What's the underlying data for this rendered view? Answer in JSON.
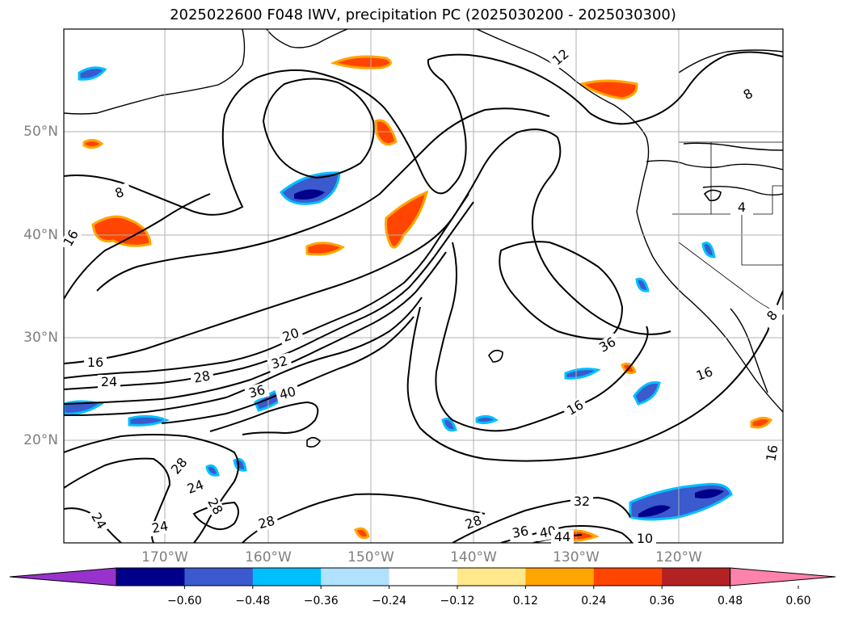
{
  "title": "2025022600 F048 IWV, precipitation PC (2025030200 - 2025030300)",
  "map": {
    "lat_labels": [
      "50°N",
      "40°N",
      "30°N",
      "20°N"
    ],
    "lon_labels": [
      "170°W",
      "160°W",
      "150°W",
      "140°W",
      "130°W",
      "120°W"
    ],
    "contour_labels": [
      "8",
      "16",
      "16",
      "20",
      "24",
      "28",
      "32",
      "36",
      "40",
      "36",
      "16",
      "16",
      "12",
      "8",
      "8",
      "4",
      "28",
      "24",
      "28",
      "24",
      "24",
      "28",
      "32",
      "28",
      "36",
      "40",
      "44",
      "16",
      "10"
    ]
  },
  "colorbar": {
    "ticks": [
      "−0.60",
      "−0.48",
      "−0.36",
      "−0.24",
      "−0.12",
      "0.12",
      "0.24",
      "0.36",
      "0.48",
      "0.60"
    ],
    "colors": [
      "#9932cc",
      "#00008b",
      "#3a5acd",
      "#00bfff",
      "#b0e2ff",
      "#ffffff",
      "#ffe88c",
      "#ffa500",
      "#ff4500",
      "#b22222",
      "#ff82ab"
    ]
  }
}
